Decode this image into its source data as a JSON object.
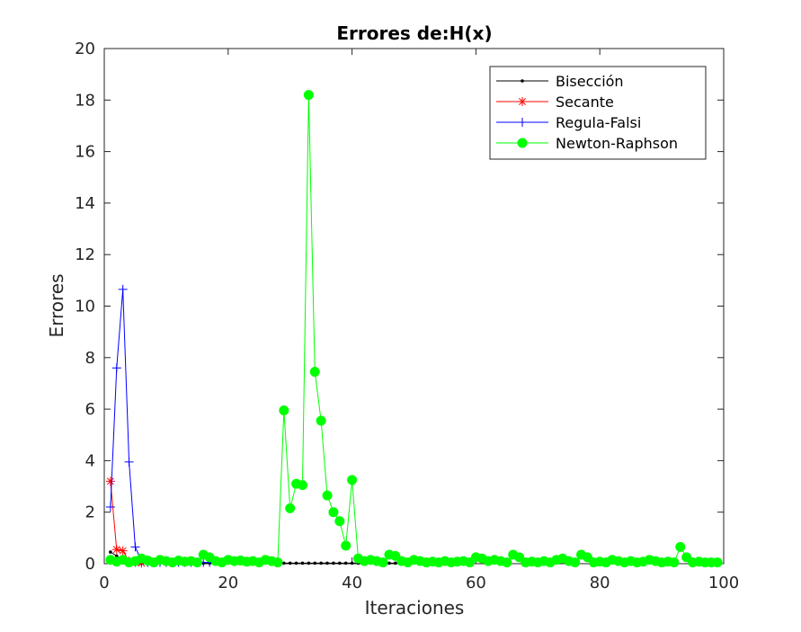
{
  "chart_data": {
    "type": "line",
    "title": "Errores de:H(x)",
    "xlabel": "Iteraciones",
    "ylabel": "Errores",
    "xlim": [
      0,
      100
    ],
    "ylim": [
      0,
      20
    ],
    "xticks": [
      0,
      20,
      40,
      60,
      80,
      100
    ],
    "yticks": [
      0,
      2,
      4,
      6,
      8,
      10,
      12,
      14,
      16,
      18,
      20
    ],
    "grid": false,
    "legend_position": "top-right",
    "series": [
      {
        "name": "Bisección",
        "color": "#000000",
        "marker": "dot",
        "x": [
          1,
          2,
          3,
          4,
          5,
          6,
          7,
          8,
          9,
          10,
          11,
          12,
          13,
          14,
          15,
          16,
          17,
          18,
          19,
          20,
          21,
          22,
          23,
          24,
          25,
          26,
          27,
          28,
          29,
          30,
          31,
          32,
          33,
          34,
          35,
          36,
          37,
          38,
          39,
          40,
          41,
          42,
          43,
          44,
          45,
          46,
          47,
          48
        ],
        "y": [
          0.45,
          0.3,
          0.15,
          0.08,
          0.05,
          0.03,
          0.02,
          0.02,
          0.02,
          0.02,
          0.02,
          0.02,
          0.02,
          0.02,
          0.02,
          0.02,
          0.02,
          0.02,
          0.02,
          0.02,
          0.02,
          0.02,
          0.02,
          0.02,
          0.02,
          0.02,
          0.02,
          0.02,
          0.02,
          0.02,
          0.02,
          0.02,
          0.02,
          0.02,
          0.02,
          0.02,
          0.02,
          0.02,
          0.02,
          0.02,
          0.02,
          0.02,
          0.02,
          0.02,
          0.02,
          0.02,
          0.02,
          0.02
        ]
      },
      {
        "name": "Secante",
        "color": "#ff0000",
        "marker": "asterisk",
        "x": [
          1,
          2,
          3,
          4,
          5,
          6
        ],
        "y": [
          3.2,
          0.55,
          0.5,
          0.1,
          0.05,
          0.02
        ]
      },
      {
        "name": "Regula-Falsi",
        "color": "#0000ff",
        "marker": "plus",
        "x": [
          1,
          2,
          3,
          4,
          5,
          6,
          7,
          8,
          9,
          10,
          11,
          12,
          13,
          14,
          15,
          16,
          17
        ],
        "y": [
          2.2,
          7.6,
          10.65,
          3.95,
          0.65,
          0.1,
          0.05,
          0.05,
          0.05,
          0.05,
          0.05,
          0.05,
          0.05,
          0.05,
          0.05,
          0.05,
          0.05
        ]
      },
      {
        "name": "Newton-Raphson",
        "color": "#00ff00",
        "marker": "circle",
        "x": [
          1,
          2,
          3,
          4,
          5,
          6,
          7,
          8,
          9,
          10,
          11,
          12,
          13,
          14,
          15,
          16,
          17,
          18,
          19,
          20,
          21,
          22,
          23,
          24,
          25,
          26,
          27,
          28,
          29,
          30,
          31,
          32,
          33,
          34,
          35,
          36,
          37,
          38,
          39,
          40,
          41,
          42,
          43,
          44,
          45,
          46,
          47,
          48,
          49,
          50,
          51,
          52,
          53,
          54,
          55,
          56,
          57,
          58,
          59,
          60,
          61,
          62,
          63,
          64,
          65,
          66,
          67,
          68,
          69,
          70,
          71,
          72,
          73,
          74,
          75,
          76,
          77,
          78,
          79,
          80,
          81,
          82,
          83,
          84,
          85,
          86,
          87,
          88,
          89,
          90,
          91,
          92,
          93,
          94,
          95,
          96,
          97,
          98,
          99
        ],
        "y": [
          0.15,
          0.08,
          0.15,
          0.05,
          0.1,
          0.2,
          0.12,
          0.05,
          0.15,
          0.1,
          0.05,
          0.12,
          0.08,
          0.1,
          0.05,
          0.35,
          0.25,
          0.1,
          0.05,
          0.15,
          0.1,
          0.12,
          0.08,
          0.1,
          0.05,
          0.15,
          0.1,
          0.05,
          5.95,
          2.15,
          3.1,
          3.05,
          18.2,
          7.45,
          5.55,
          2.65,
          2.0,
          1.65,
          0.7,
          3.25,
          0.2,
          0.1,
          0.15,
          0.1,
          0.05,
          0.35,
          0.3,
          0.1,
          0.05,
          0.15,
          0.1,
          0.05,
          0.08,
          0.05,
          0.1,
          0.05,
          0.08,
          0.1,
          0.05,
          0.25,
          0.2,
          0.1,
          0.15,
          0.1,
          0.05,
          0.35,
          0.25,
          0.05,
          0.08,
          0.05,
          0.1,
          0.05,
          0.15,
          0.2,
          0.1,
          0.05,
          0.35,
          0.25,
          0.05,
          0.08,
          0.05,
          0.15,
          0.1,
          0.05,
          0.1,
          0.05,
          0.08,
          0.15,
          0.1,
          0.05,
          0.08,
          0.05,
          0.65,
          0.25,
          0.05,
          0.08,
          0.05,
          0.05,
          0.05
        ]
      }
    ]
  }
}
